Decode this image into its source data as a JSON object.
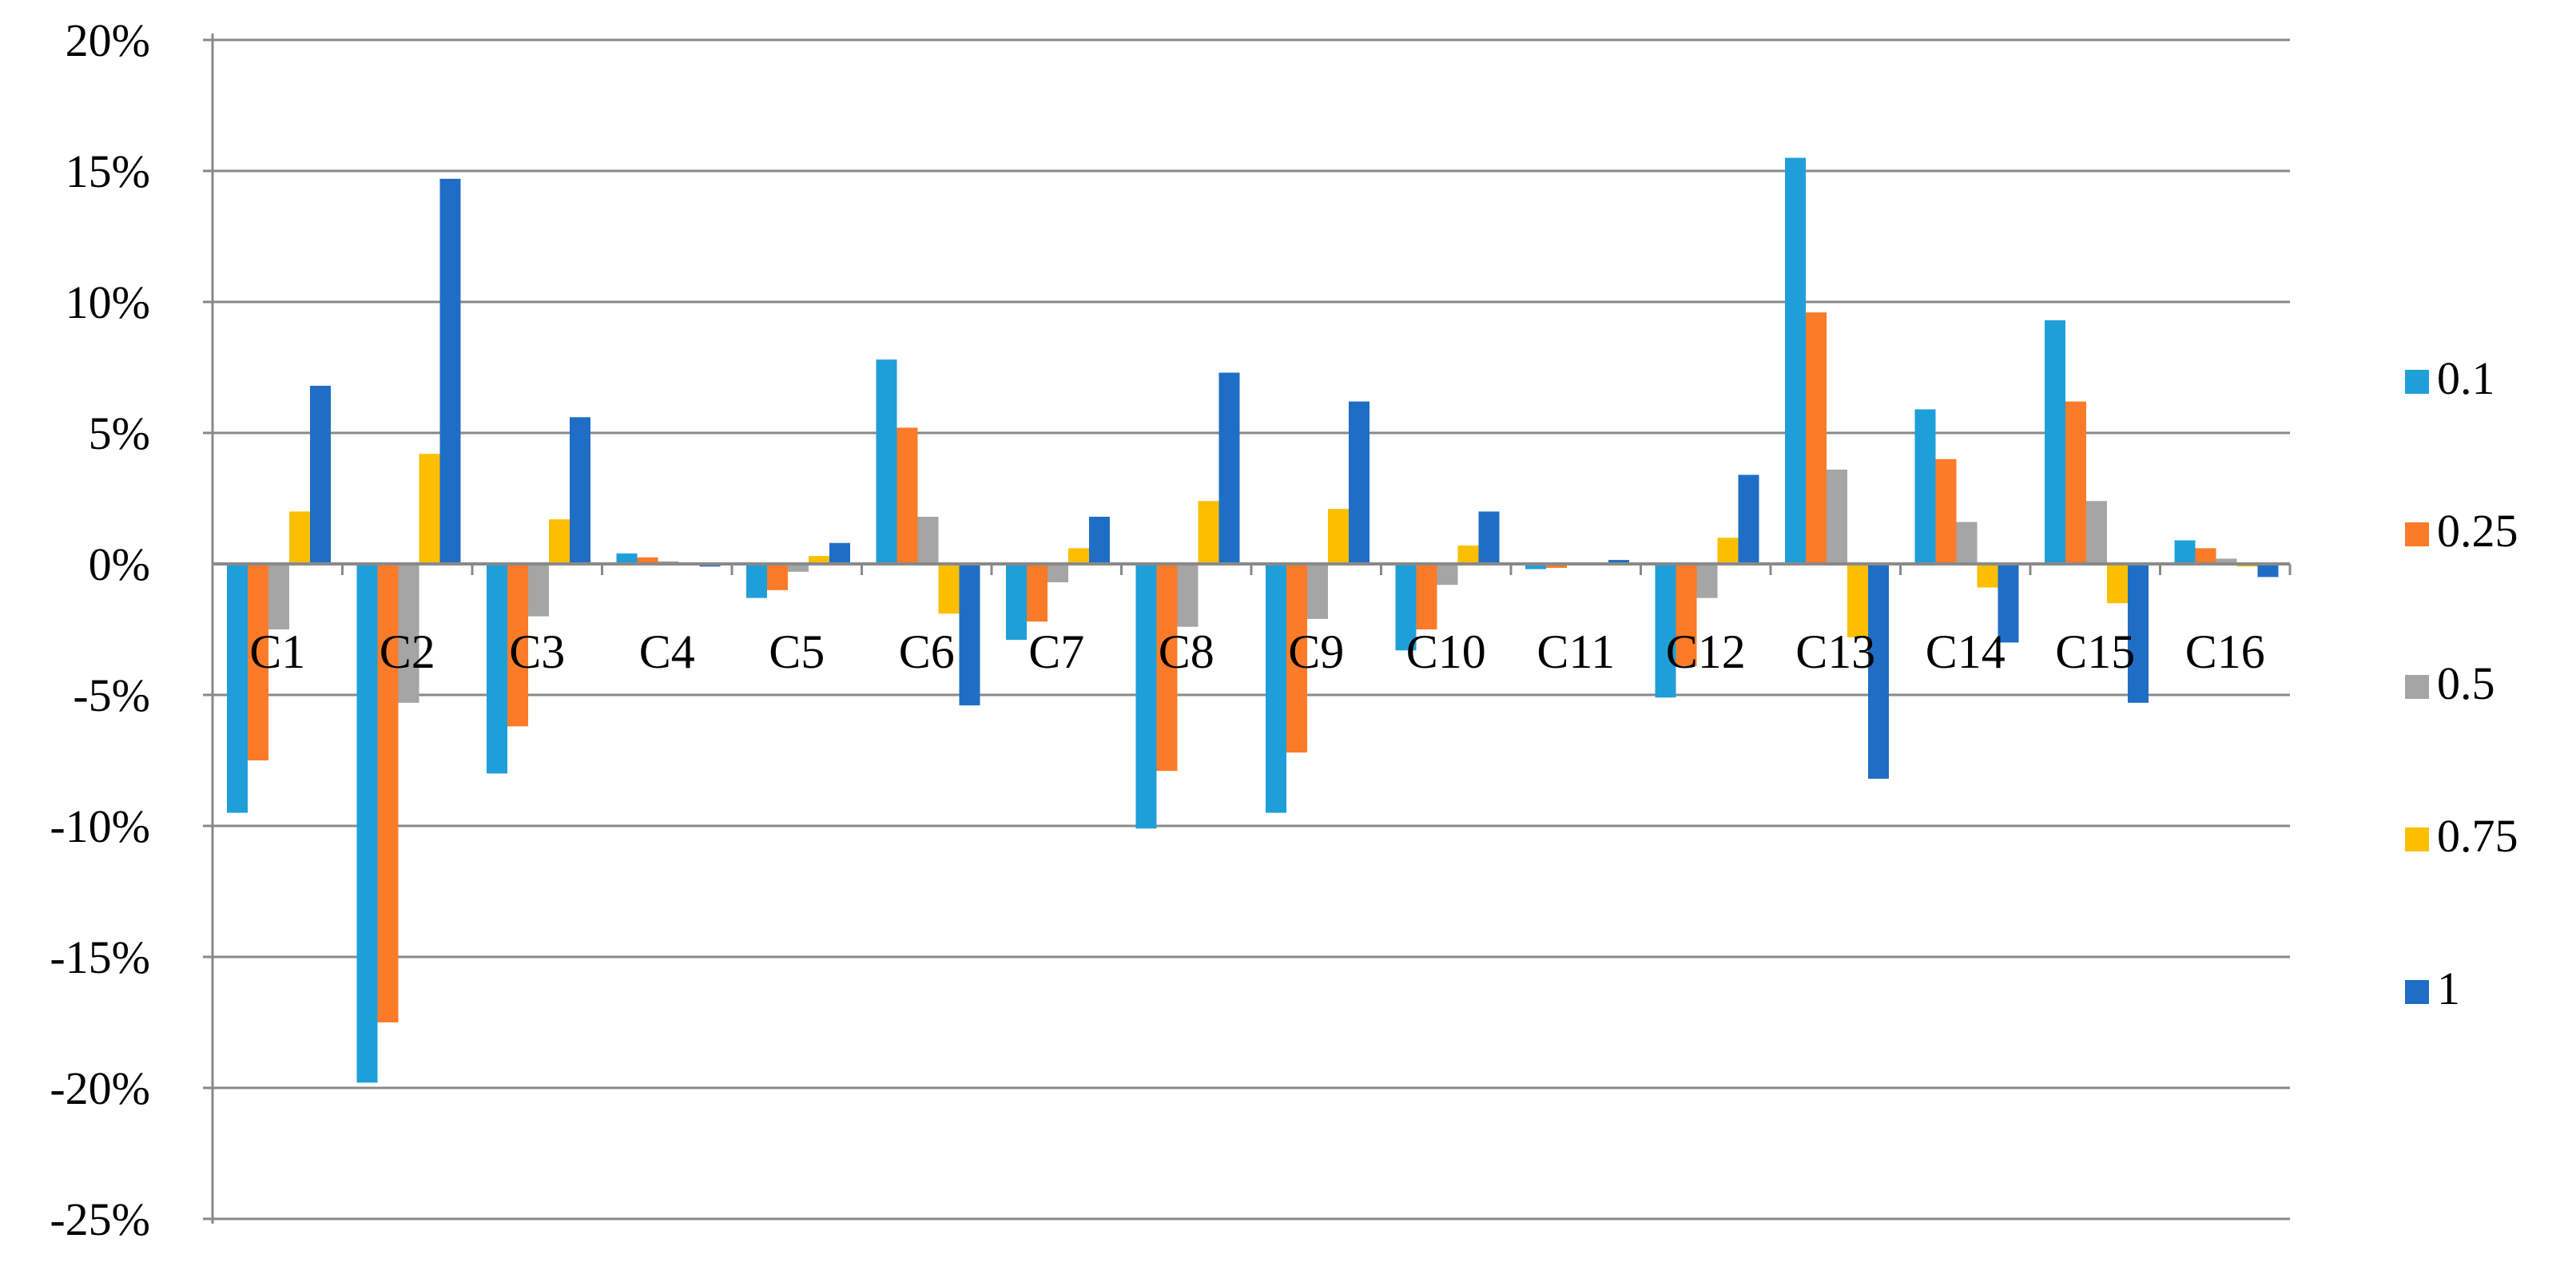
{
  "chart_data": {
    "type": "bar",
    "categories": [
      "C1",
      "C2",
      "C3",
      "C4",
      "C5",
      "C6",
      "C7",
      "C8",
      "C9",
      "C10",
      "C11",
      "C12",
      "C13",
      "C14",
      "C15",
      "C16"
    ],
    "y_unit": "%",
    "ylim": [
      -25,
      20
    ],
    "yticks": [
      20,
      15,
      10,
      5,
      0,
      -5,
      -10,
      -15,
      -20,
      -25
    ],
    "ytick_labels": [
      "20%",
      "15%",
      "10%",
      "5%",
      "0%",
      "-5%",
      "-10%",
      "-15%",
      "-20%",
      "-25%"
    ],
    "grid": true,
    "legend_position": "right",
    "series": [
      {
        "name": "0.1",
        "color": "#1F9FDA",
        "values": [
          -9.5,
          -19.8,
          -8.0,
          0.4,
          -1.3,
          7.8,
          -2.9,
          -10.1,
          -9.5,
          -3.3,
          -0.2,
          -5.1,
          15.5,
          5.9,
          9.3,
          0.9
        ]
      },
      {
        "name": "0.25",
        "color": "#FB7B28",
        "values": [
          -7.5,
          -17.5,
          -6.2,
          0.25,
          -1.0,
          5.2,
          -2.2,
          -7.9,
          -7.2,
          -2.5,
          -0.15,
          -3.9,
          9.6,
          4.0,
          6.2,
          0.6
        ]
      },
      {
        "name": "0.5",
        "color": "#A5A5A5",
        "values": [
          -2.5,
          -5.3,
          -2.0,
          0.1,
          -0.3,
          1.8,
          -0.7,
          -2.4,
          -2.1,
          -0.8,
          -0.05,
          -1.3,
          3.6,
          1.6,
          2.4,
          0.2
        ]
      },
      {
        "name": "0.75",
        "color": "#FCBF00",
        "values": [
          2.0,
          4.2,
          1.7,
          -0.05,
          0.3,
          -1.9,
          0.6,
          2.4,
          2.1,
          0.7,
          0.05,
          1.0,
          -2.8,
          -0.9,
          -1.5,
          -0.1
        ]
      },
      {
        "name": "1",
        "color": "#1F6EC6",
        "values": [
          6.8,
          14.7,
          5.6,
          -0.1,
          0.8,
          -5.4,
          1.8,
          7.3,
          6.2,
          2.0,
          0.15,
          3.4,
          -8.2,
          -3.0,
          -5.3,
          -0.5
        ]
      }
    ]
  }
}
